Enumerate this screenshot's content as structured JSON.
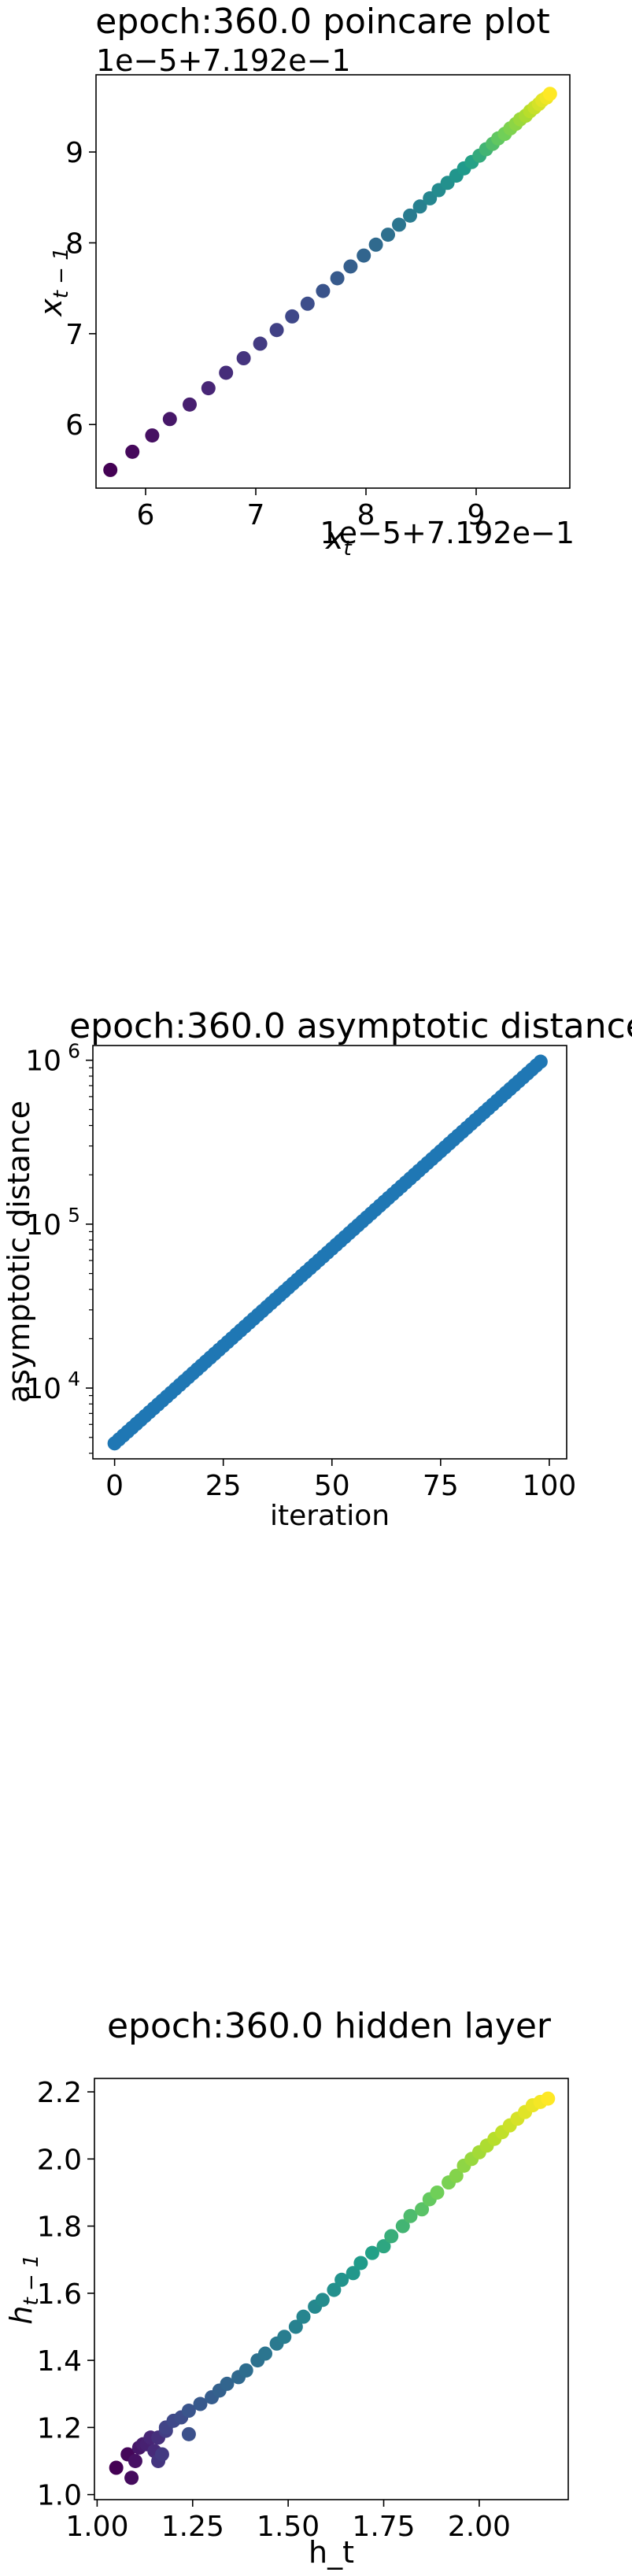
{
  "chart_data": [
    {
      "type": "scatter",
      "title": "epoch:360.0 poincare plot",
      "offset_label": "1e−5+7.192e−1",
      "x_offset_label": "1e−5+7.192e−1",
      "xlabel": "x_t",
      "ylabel": "x_{t−1}",
      "xlim": [
        5.55,
        9.85
      ],
      "ylim": [
        5.3,
        9.85
      ],
      "xticks": [
        6,
        7,
        8,
        9
      ],
      "xtick_labels": [
        "6",
        "7",
        "8",
        "9"
      ],
      "yticks": [
        6,
        7,
        8,
        9
      ],
      "ytick_labels": [
        "6",
        "7",
        "8",
        "9"
      ],
      "colormap": "viridis",
      "colors": [
        "#440154",
        "#482777",
        "#3f4a8a",
        "#31678e",
        "#26838f",
        "#1f9d8a",
        "#6cce5a",
        "#b6de2b",
        "#fee825"
      ],
      "points": [
        [
          5.68,
          5.5
        ],
        [
          5.88,
          5.7
        ],
        [
          6.06,
          5.88
        ],
        [
          6.22,
          6.06
        ],
        [
          6.4,
          6.22
        ],
        [
          6.57,
          6.4
        ],
        [
          6.73,
          6.57
        ],
        [
          6.89,
          6.73
        ],
        [
          7.04,
          6.89
        ],
        [
          7.19,
          7.04
        ],
        [
          7.33,
          7.19
        ],
        [
          7.47,
          7.33
        ],
        [
          7.61,
          7.47
        ],
        [
          7.74,
          7.61
        ],
        [
          7.86,
          7.74
        ],
        [
          7.98,
          7.86
        ],
        [
          8.09,
          7.98
        ],
        [
          8.2,
          8.09
        ],
        [
          8.3,
          8.2
        ],
        [
          8.4,
          8.3
        ],
        [
          8.49,
          8.4
        ],
        [
          8.58,
          8.49
        ],
        [
          8.66,
          8.58
        ],
        [
          8.74,
          8.66
        ],
        [
          8.82,
          8.74
        ],
        [
          8.89,
          8.82
        ],
        [
          8.96,
          8.89
        ],
        [
          9.03,
          8.96
        ],
        [
          9.09,
          9.03
        ],
        [
          9.15,
          9.09
        ],
        [
          9.2,
          9.15
        ],
        [
          9.26,
          9.2
        ],
        [
          9.31,
          9.26
        ],
        [
          9.36,
          9.31
        ],
        [
          9.4,
          9.36
        ],
        [
          9.45,
          9.4
        ],
        [
          9.49,
          9.45
        ],
        [
          9.53,
          9.49
        ],
        [
          9.57,
          9.53
        ],
        [
          9.6,
          9.57
        ],
        [
          9.64,
          9.6
        ],
        [
          9.67,
          9.64
        ]
      ]
    },
    {
      "type": "scatter",
      "title": "epoch:360.0 asymptotic distance",
      "xlabel": "iteration",
      "ylabel": "asymptotic distance",
      "xscale": "linear",
      "yscale": "log",
      "xlim": [
        -5,
        104
      ],
      "ylim": [
        3700,
        1230000
      ],
      "xticks": [
        0,
        25,
        50,
        75,
        100
      ],
      "xtick_labels": [
        "0",
        "25",
        "50",
        "75",
        "100"
      ],
      "yticks": [
        10000,
        100000,
        1000000
      ],
      "ytick_labels": [
        "10",
        "10",
        "10"
      ],
      "ytick_exponents": [
        "4",
        "5",
        "6"
      ],
      "color": "#1f77b4",
      "x_start": 0,
      "x_end": 98,
      "y_start": 4600,
      "y_end": 980000
    },
    {
      "type": "scatter",
      "title": "epoch:360.0 hidden layer",
      "xlabel": "h_t",
      "ylabel": "h_{t−1}",
      "xlim": [
        0.993,
        2.233
      ],
      "ylim": [
        0.985,
        2.24
      ],
      "xticks": [
        1.0,
        1.25,
        1.5,
        1.75,
        2.0
      ],
      "xtick_labels": [
        "1.00",
        "1.25",
        "1.50",
        "1.75",
        "2.00"
      ],
      "yticks": [
        1.0,
        1.2,
        1.4,
        1.6,
        1.8,
        2.0,
        2.2
      ],
      "ytick_labels": [
        "1.0",
        "1.2",
        "1.4",
        "1.6",
        "1.8",
        "2.0",
        "2.2"
      ],
      "colormap": "viridis",
      "colors": [
        "#440154",
        "#482777",
        "#3f4a8a",
        "#31678e",
        "#26838f",
        "#1f9d8a",
        "#6cce5a",
        "#b6de2b",
        "#fee825"
      ],
      "points": [
        [
          1.05,
          1.08
        ],
        [
          1.08,
          1.12
        ],
        [
          1.09,
          1.05
        ],
        [
          1.1,
          1.1
        ],
        [
          1.11,
          1.14
        ],
        [
          1.12,
          1.15
        ],
        [
          1.13,
          1.15
        ],
        [
          1.14,
          1.17
        ],
        [
          1.15,
          1.13
        ],
        [
          1.16,
          1.17
        ],
        [
          1.16,
          1.1
        ],
        [
          1.17,
          1.12
        ],
        [
          1.18,
          1.19
        ],
        [
          1.18,
          1.2
        ],
        [
          1.2,
          1.22
        ],
        [
          1.22,
          1.23
        ],
        [
          1.24,
          1.18
        ],
        [
          1.24,
          1.25
        ],
        [
          1.27,
          1.27
        ],
        [
          1.3,
          1.29
        ],
        [
          1.32,
          1.31
        ],
        [
          1.34,
          1.33
        ],
        [
          1.37,
          1.35
        ],
        [
          1.39,
          1.37
        ],
        [
          1.42,
          1.4
        ],
        [
          1.44,
          1.42
        ],
        [
          1.47,
          1.45
        ],
        [
          1.49,
          1.47
        ],
        [
          1.52,
          1.5
        ],
        [
          1.54,
          1.53
        ],
        [
          1.57,
          1.56
        ],
        [
          1.59,
          1.58
        ],
        [
          1.62,
          1.61
        ],
        [
          1.64,
          1.64
        ],
        [
          1.67,
          1.66
        ],
        [
          1.69,
          1.69
        ],
        [
          1.72,
          1.72
        ],
        [
          1.75,
          1.74
        ],
        [
          1.77,
          1.77
        ],
        [
          1.8,
          1.8
        ],
        [
          1.82,
          1.83
        ],
        [
          1.85,
          1.85
        ],
        [
          1.87,
          1.88
        ],
        [
          1.89,
          1.9
        ],
        [
          1.92,
          1.93
        ],
        [
          1.94,
          1.95
        ],
        [
          1.96,
          1.98
        ],
        [
          1.98,
          2.0
        ],
        [
          2.0,
          2.02
        ],
        [
          2.02,
          2.04
        ],
        [
          2.04,
          2.06
        ],
        [
          2.06,
          2.08
        ],
        [
          2.08,
          2.1
        ],
        [
          2.1,
          2.12
        ],
        [
          2.12,
          2.14
        ],
        [
          2.14,
          2.16
        ],
        [
          2.16,
          2.17
        ],
        [
          2.18,
          2.18
        ]
      ]
    }
  ]
}
